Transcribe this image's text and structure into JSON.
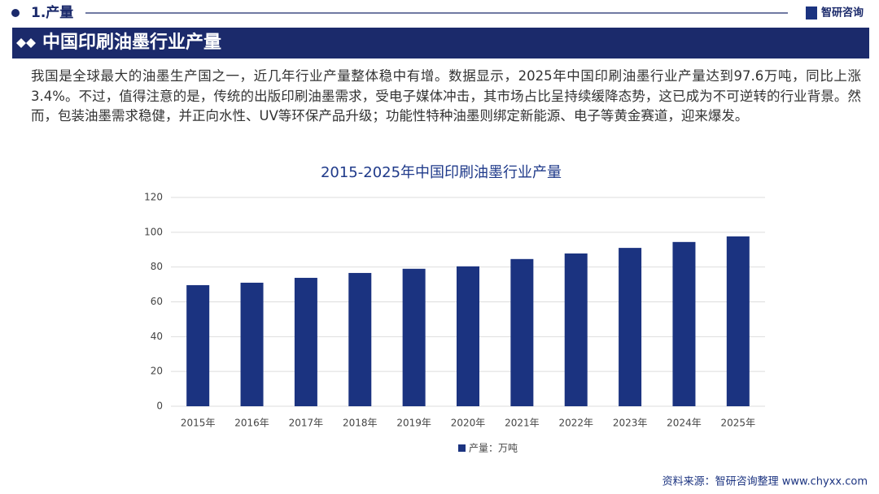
{
  "header": {
    "section": "1.产量",
    "logo": "智研咨询",
    "banner": "中国印刷油墨行业产量"
  },
  "paragraph": "我国是全球最大的油墨生产国之一，近几年行业产量整体稳中有增。数据显示，2025年中国印刷油墨行业产量达到97.6万吨，同比上涨3.4%。不过，值得注意的是，传统的出版印刷油墨需求，受电子媒体冲击，其市场占比呈持续缓降态势，这已成为不可逆转的行业背景。然而，包装油墨需求稳健，并正向水性、UV等环保产品升级；功能性特种油墨则绑定新能源、电子等黄金赛道，迎来爆发。",
  "source": "资料来源：智研咨询整理  www.chyxx.com",
  "chart_data": {
    "type": "bar",
    "title": "2015-2025年中国印刷油墨行业产量",
    "categories": [
      "2015年",
      "2016年",
      "2017年",
      "2018年",
      "2019年",
      "2020年",
      "2021年",
      "2022年",
      "2023年",
      "2024年",
      "2025年"
    ],
    "series": [
      {
        "name": "产量：万吨",
        "color": "#1b3380",
        "values": [
          69.6,
          71,
          73.8,
          76.6,
          79,
          80.4,
          84.6,
          87.8,
          91,
          94.4,
          97.6
        ]
      }
    ],
    "ylim": [
      0,
      120
    ],
    "yticks": [
      0,
      20,
      40,
      60,
      80,
      100,
      120
    ],
    "grid": true,
    "legend": "bottom"
  }
}
